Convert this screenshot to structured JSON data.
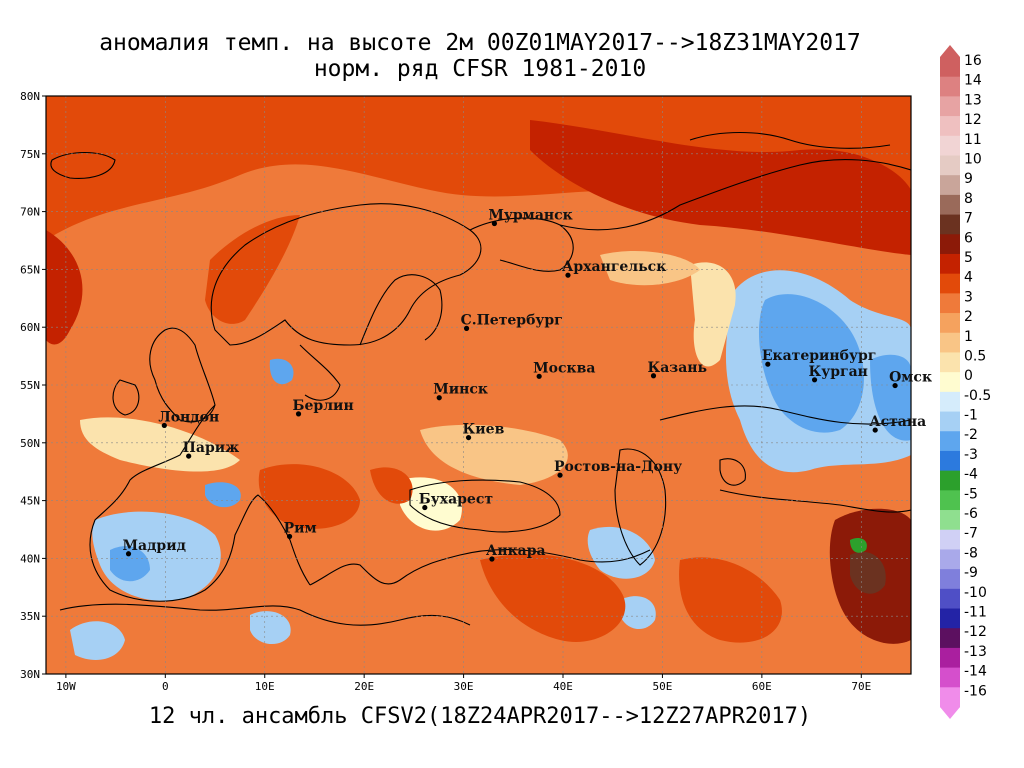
{
  "title_line1": "аномалия темп. на высоте 2м 00Z01MAY2017-->18Z31MAY2017",
  "title_line2": "норм. ряд CFSR 1981-2010",
  "footer": "12 чл. ансамбль CFSV2(18Z24APR2017-->12Z27APR2017)",
  "map": {
    "lon_range": [
      -12,
      75
    ],
    "lat_range": [
      30,
      80
    ],
    "lat_ticks": [
      {
        "value": 30,
        "label": "30N"
      },
      {
        "value": 35,
        "label": "35N"
      },
      {
        "value": 40,
        "label": "40N"
      },
      {
        "value": 45,
        "label": "45N"
      },
      {
        "value": 50,
        "label": "50N"
      },
      {
        "value": 55,
        "label": "55N"
      },
      {
        "value": 60,
        "label": "60N"
      },
      {
        "value": 65,
        "label": "65N"
      },
      {
        "value": 70,
        "label": "70N"
      },
      {
        "value": 75,
        "label": "75N"
      },
      {
        "value": 80,
        "label": "80N"
      }
    ],
    "lon_ticks": [
      {
        "value": -10,
        "label": "10W"
      },
      {
        "value": 0,
        "label": "0"
      },
      {
        "value": 10,
        "label": "10E"
      },
      {
        "value": 20,
        "label": "20E"
      },
      {
        "value": 30,
        "label": "30E"
      },
      {
        "value": 40,
        "label": "40E"
      },
      {
        "value": 50,
        "label": "50E"
      },
      {
        "value": 60,
        "label": "60E"
      },
      {
        "value": 70,
        "label": "70E"
      }
    ],
    "cities": [
      {
        "name": "Мурманск",
        "lon": 33.1,
        "lat": 68.97
      },
      {
        "name": "Архангельск",
        "lon": 40.5,
        "lat": 64.5
      },
      {
        "name": "С.Петербург",
        "lon": 30.3,
        "lat": 59.9
      },
      {
        "name": "Москва",
        "lon": 37.6,
        "lat": 55.75
      },
      {
        "name": "Казань",
        "lon": 49.1,
        "lat": 55.8
      },
      {
        "name": "Екатеринбург",
        "lon": 60.6,
        "lat": 56.8
      },
      {
        "name": "Курган",
        "lon": 65.3,
        "lat": 55.45
      },
      {
        "name": "Омск",
        "lon": 73.4,
        "lat": 54.95
      },
      {
        "name": "Астана",
        "lon": 71.4,
        "lat": 51.1
      },
      {
        "name": "Минск",
        "lon": 27.55,
        "lat": 53.9
      },
      {
        "name": "Киев",
        "lon": 30.5,
        "lat": 50.45
      },
      {
        "name": "Берлин",
        "lon": 13.4,
        "lat": 52.5
      },
      {
        "name": "Лондон",
        "lon": -0.1,
        "lat": 51.5
      },
      {
        "name": "Париж",
        "lon": 2.35,
        "lat": 48.85
      },
      {
        "name": "Мадрид",
        "lon": -3.7,
        "lat": 40.4
      },
      {
        "name": "Рим",
        "lon": 12.5,
        "lat": 41.9
      },
      {
        "name": "Бухарест",
        "lon": 26.1,
        "lat": 44.4
      },
      {
        "name": "Ростов-на-Дону",
        "lon": 39.7,
        "lat": 47.2
      },
      {
        "name": "Анкара",
        "lon": 32.85,
        "lat": 39.95
      }
    ]
  },
  "colorbar": {
    "labels": [
      "16",
      "14",
      "13",
      "12",
      "11",
      "10",
      "9",
      "8",
      "7",
      "6",
      "5",
      "4",
      "3",
      "2",
      "1",
      "0.5",
      "0",
      "-0.5",
      "-1",
      "-2",
      "-3",
      "-4",
      "-5",
      "-6",
      "-7",
      "-8",
      "-9",
      "-10",
      "-11",
      "-12",
      "-13",
      "-14",
      "-16"
    ],
    "colors": [
      "#cf6060",
      "#dd8181",
      "#e7a3a3",
      "#efc0c0",
      "#f1d4d4",
      "#e5cbc4",
      "#c9a59a",
      "#9a6a5a",
      "#6b3220",
      "#8c1a08",
      "#c42200",
      "#e24a0a",
      "#ef7a3a",
      "#f5a25e",
      "#f9c586",
      "#fbe3ad",
      "#fffcd0",
      "#d5ecfb",
      "#a6d0f4",
      "#5ea6ee",
      "#2c7ade",
      "#2ca02c",
      "#4fc24f",
      "#8fdf8f",
      "#d0d0f5",
      "#a9a9ea",
      "#7f7fdc",
      "#4f4fc6",
      "#2323a6",
      "#5c1060",
      "#aa1f9f",
      "#d54fcc",
      "#f08cea"
    ]
  }
}
